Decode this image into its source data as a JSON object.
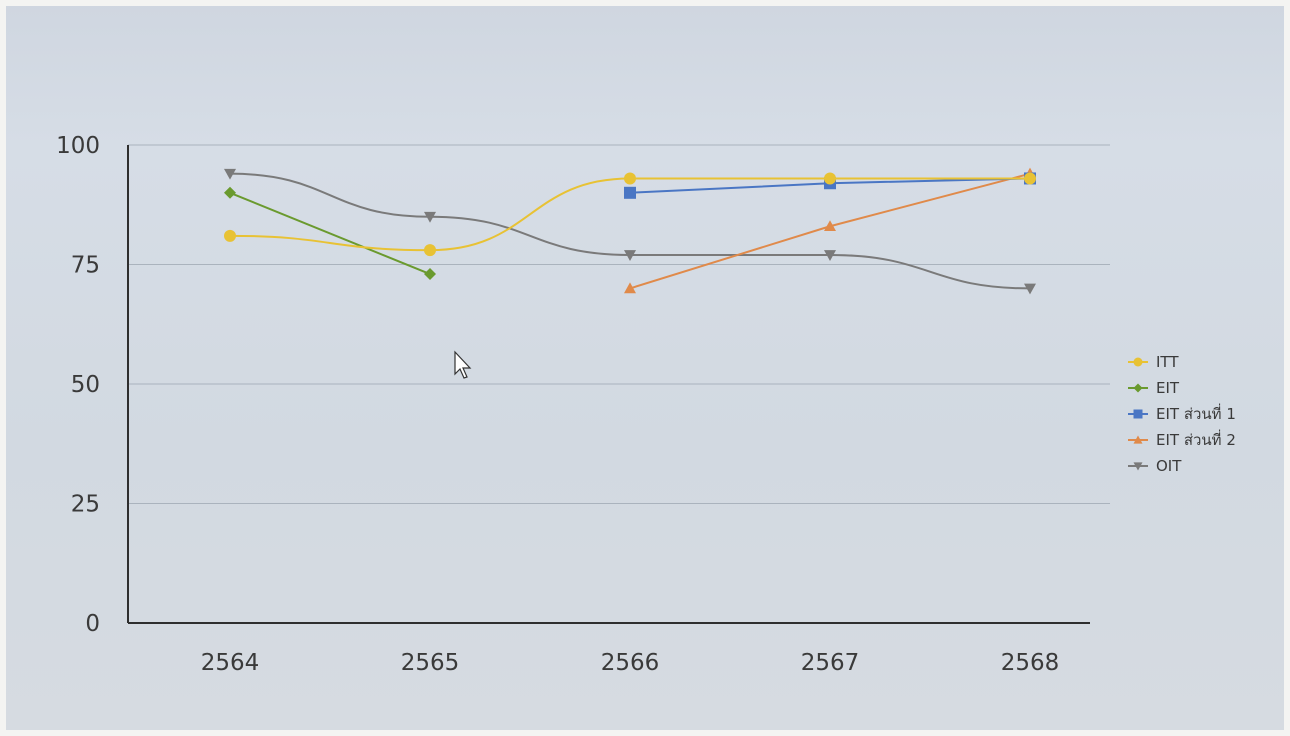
{
  "chart_data": {
    "type": "line",
    "title": "",
    "xlabel": "",
    "ylabel": "",
    "categories": [
      "2564",
      "2565",
      "2566",
      "2567",
      "2568"
    ],
    "ylim": [
      0,
      100
    ],
    "yticks": [
      0,
      25,
      50,
      75,
      100
    ],
    "grid": true,
    "legend_position": "right",
    "series": [
      {
        "name": "ITT",
        "color": "#e8c234",
        "marker": "circle",
        "smooth": true,
        "values": [
          81,
          78,
          93,
          93,
          93
        ]
      },
      {
        "name": "EIT",
        "color": "#6a9a2e",
        "marker": "diamond",
        "smooth": false,
        "values": [
          90,
          73,
          null,
          null,
          null
        ]
      },
      {
        "name": "EIT ส่วนที่ 1",
        "color": "#4a76c4",
        "marker": "square",
        "smooth": false,
        "values": [
          null,
          null,
          90,
          92,
          93
        ]
      },
      {
        "name": "EIT ส่วนที่ 2",
        "color": "#e08a4a",
        "marker": "triangle-up",
        "smooth": false,
        "values": [
          null,
          null,
          70,
          83,
          94
        ]
      },
      {
        "name": "OIT",
        "color": "#7a7a7a",
        "marker": "triangle-down",
        "smooth": true,
        "values": [
          94,
          85,
          77,
          77,
          70
        ]
      }
    ]
  }
}
